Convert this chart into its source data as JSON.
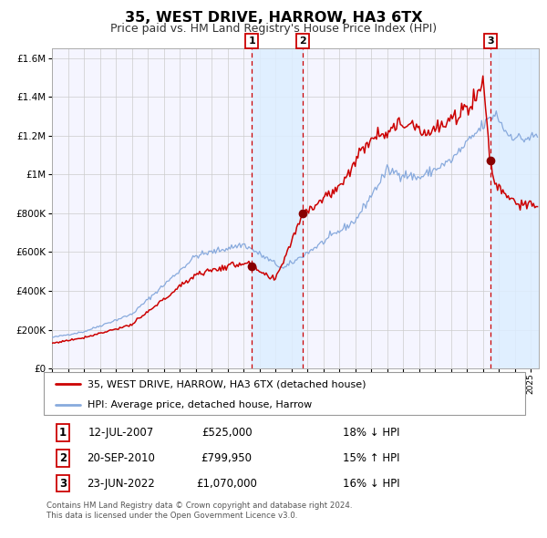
{
  "title": "35, WEST DRIVE, HARROW, HA3 6TX",
  "subtitle": "Price paid vs. HM Land Registry's House Price Index (HPI)",
  "legend_line1": "35, WEST DRIVE, HARROW, HA3 6TX (detached house)",
  "legend_line2": "HPI: Average price, detached house, Harrow",
  "footer1": "Contains HM Land Registry data © Crown copyright and database right 2024.",
  "footer2": "This data is licensed under the Open Government Licence v3.0.",
  "transactions": [
    {
      "num": "1",
      "date": "12-JUL-2007",
      "price": "£525,000",
      "hpi_rel": "18% ↓ HPI"
    },
    {
      "num": "2",
      "date": "20-SEP-2010",
      "price": "£799,950",
      "hpi_rel": "15% ↑ HPI"
    },
    {
      "num": "3",
      "date": "23-JUN-2022",
      "price": "£1,070,000",
      "hpi_rel": "16% ↓ HPI"
    }
  ],
  "transaction_dates_decimal": [
    2007.536,
    2010.722,
    2022.479
  ],
  "transaction_prices": [
    525000,
    799950,
    1070000
  ],
  "property_color": "#cc0000",
  "hpi_color": "#88aadd",
  "vline_color": "#cc0000",
  "vband_color": "#ddeeff",
  "dot_color": "#880000",
  "ylim": [
    0,
    1650000
  ],
  "xlim_start": 1995.0,
  "xlim_end": 2025.5,
  "grid_color": "#cccccc",
  "background_color": "#ffffff",
  "chart_bg": "#f5f5ff",
  "title_fontsize": 11.5,
  "subtitle_fontsize": 9.0
}
